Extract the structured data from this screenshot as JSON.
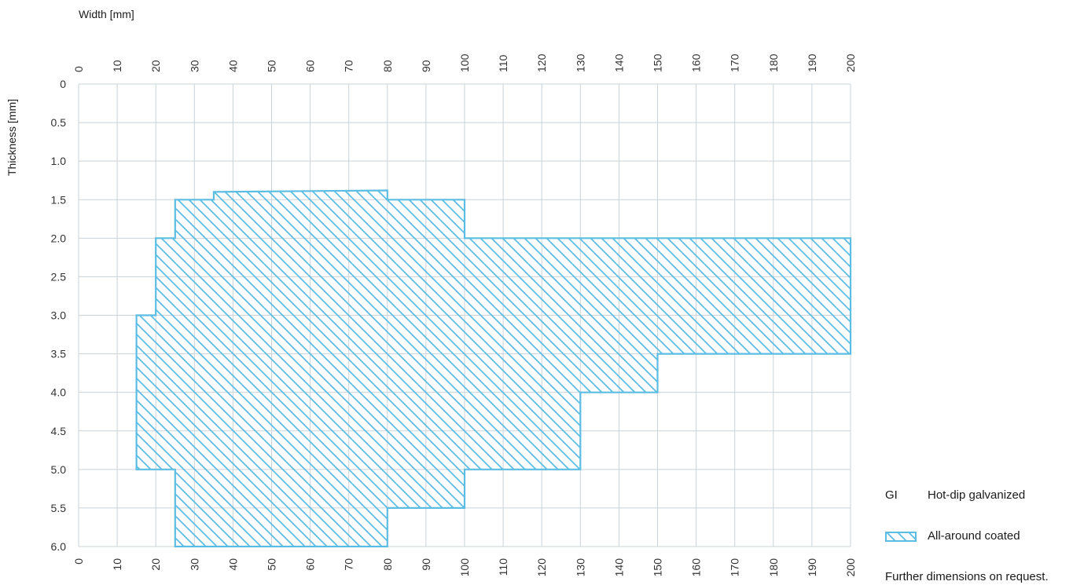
{
  "chart_data": {
    "type": "area",
    "xlabel": "Width [mm]",
    "ylabel": "Thickness [mm]",
    "xlim": [
      0,
      200
    ],
    "ylim": [
      0,
      6.0
    ],
    "x_ticks": [
      0,
      10,
      20,
      30,
      40,
      50,
      60,
      70,
      80,
      90,
      100,
      110,
      120,
      130,
      140,
      150,
      160,
      170,
      180,
      190,
      200
    ],
    "y_ticks": [
      "0",
      "0.5",
      "1.0",
      "1.5",
      "2.0",
      "2.5",
      "3.0",
      "3.5",
      "4.0",
      "4.5",
      "5.0",
      "5.5",
      "6.0"
    ],
    "y_inverted": true,
    "x_axis_top_and_bottom": true,
    "grid": true,
    "series": [
      {
        "name": "All-around coated",
        "fill": "hatched",
        "color": "#5bbde3",
        "polygon": [
          [
            25,
            1.5
          ],
          [
            35,
            1.5
          ],
          [
            35,
            1.4
          ],
          [
            80,
            1.38
          ],
          [
            80,
            1.5
          ],
          [
            100,
            1.5
          ],
          [
            100,
            2.0
          ],
          [
            200,
            2.0
          ],
          [
            200,
            3.5
          ],
          [
            150,
            3.5
          ],
          [
            150,
            4.0
          ],
          [
            130,
            4.0
          ],
          [
            130,
            5.0
          ],
          [
            100,
            5.0
          ],
          [
            100,
            5.5
          ],
          [
            80,
            5.5
          ],
          [
            80,
            6.0
          ],
          [
            25,
            6.0
          ],
          [
            25,
            5.0
          ],
          [
            15,
            5.0
          ],
          [
            15,
            3.0
          ],
          [
            20,
            3.0
          ],
          [
            20,
            2.0
          ],
          [
            25,
            2.0
          ]
        ]
      }
    ]
  },
  "legend": {
    "code": "GI",
    "code_text": "Hot-dip galvanized",
    "swatch_text": "All-around coated",
    "note": "Further dimensions on request."
  }
}
